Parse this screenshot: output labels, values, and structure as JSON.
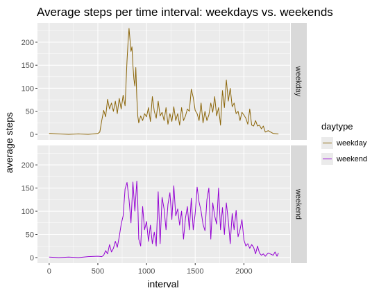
{
  "chart_data": {
    "type": "line",
    "title": "Average steps per time interval: weekdays vs. weekends",
    "xlabel": "interval",
    "ylabel": "average steps",
    "xlim": [
      -120,
      2475
    ],
    "ylim": [
      -12,
      242
    ],
    "x_ticks": [
      0,
      500,
      1000,
      1500,
      2000
    ],
    "y_ticks": [
      0,
      50,
      100,
      150,
      200
    ],
    "grid": true,
    "legend": {
      "title": "daytype",
      "placement": "right"
    },
    "colors": {
      "weekday": "#8B6508",
      "weekend": "#9400D3"
    },
    "panels": [
      {
        "label": "weekday",
        "series": [
          {
            "name": "weekday",
            "x": [
              0,
              100,
              200,
              300,
              400,
              500,
              520,
              540,
              560,
              580,
              600,
              620,
              640,
              660,
              680,
              700,
              720,
              740,
              760,
              780,
              800,
              810,
              820,
              830,
              840,
              850,
              860,
              870,
              880,
              890,
              900,
              910,
              920,
              940,
              960,
              980,
              1000,
              1020,
              1040,
              1060,
              1080,
              1100,
              1120,
              1140,
              1160,
              1180,
              1200,
              1220,
              1240,
              1260,
              1280,
              1300,
              1320,
              1340,
              1360,
              1380,
              1400,
              1420,
              1440,
              1460,
              1480,
              1500,
              1520,
              1540,
              1560,
              1580,
              1600,
              1620,
              1640,
              1660,
              1680,
              1700,
              1720,
              1740,
              1760,
              1780,
              1800,
              1820,
              1840,
              1860,
              1880,
              1900,
              1920,
              1940,
              1960,
              1980,
              2000,
              2020,
              2040,
              2060,
              2080,
              2100,
              2120,
              2140,
              2160,
              2180,
              2200,
              2220,
              2250,
              2300,
              2355
            ],
            "y": [
              2,
              1,
              0,
              1,
              0,
              2,
              5,
              30,
              52,
              38,
              76,
              55,
              68,
              50,
              72,
              45,
              78,
              55,
              85,
              62,
              160,
              200,
              230,
              205,
              180,
              190,
              150,
              120,
              105,
              145,
              80,
              40,
              25,
              40,
              30,
              45,
              38,
              58,
              28,
              82,
              50,
              35,
              72,
              40,
              48,
              30,
              58,
              22,
              45,
              28,
              60,
              30,
              45,
              20,
              58,
              30,
              40,
              55,
              50,
              98,
              80,
              52,
              45,
              30,
              68,
              25,
              50,
              30,
              42,
              68,
              48,
              82,
              40,
              58,
              20,
              95,
              58,
              118,
              72,
              100,
              60,
              68,
              45,
              50,
              30,
              48,
              42,
              35,
              22,
              55,
              20,
              18,
              30,
              18,
              20,
              12,
              18,
              5,
              8,
              2,
              1
            ]
          }
        ]
      },
      {
        "label": "weekend",
        "series": [
          {
            "name": "weekend",
            "x": [
              0,
              100,
              200,
              300,
              400,
              500,
              540,
              560,
              580,
              600,
              620,
              640,
              660,
              680,
              700,
              720,
              740,
              760,
              780,
              800,
              820,
              840,
              860,
              880,
              900,
              910,
              920,
              940,
              960,
              980,
              1000,
              1020,
              1040,
              1060,
              1080,
              1100,
              1120,
              1140,
              1160,
              1180,
              1200,
              1220,
              1240,
              1260,
              1280,
              1300,
              1320,
              1340,
              1360,
              1380,
              1400,
              1420,
              1440,
              1460,
              1480,
              1500,
              1520,
              1540,
              1560,
              1580,
              1600,
              1620,
              1640,
              1660,
              1680,
              1700,
              1720,
              1740,
              1760,
              1780,
              1800,
              1820,
              1840,
              1860,
              1880,
              1900,
              1920,
              1940,
              1960,
              1980,
              2000,
              2020,
              2040,
              2060,
              2080,
              2100,
              2120,
              2140,
              2160,
              2180,
              2200,
              2220,
              2250,
              2300,
              2320,
              2340,
              2355
            ],
            "y": [
              1,
              0,
              1,
              0,
              2,
              3,
              2,
              5,
              15,
              8,
              28,
              12,
              20,
              35,
              22,
              45,
              72,
              90,
              148,
              162,
              125,
              75,
              163,
              100,
              165,
              118,
              40,
              25,
              110,
              60,
              78,
              35,
              70,
              30,
              55,
              25,
              142,
              30,
              130,
              105,
              60,
              115,
              140,
              82,
              155,
              90,
              105,
              70,
              100,
              40,
              85,
              110,
              60,
              128,
              60,
              95,
              152,
              120,
              100,
              72,
              58,
              125,
              150,
              40,
              118,
              90,
              72,
              150,
              60,
              108,
              50,
              118,
              80,
              30,
              95,
              60,
              102,
              45,
              60,
              82,
              38,
              25,
              30,
              20,
              28,
              22,
              8,
              25,
              10,
              5,
              8,
              3,
              10,
              5,
              12,
              3,
              10
            ]
          }
        ]
      }
    ]
  }
}
